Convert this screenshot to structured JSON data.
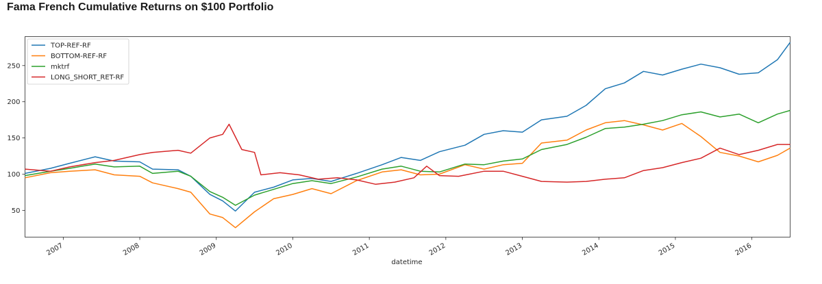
{
  "chart_data": {
    "type": "line",
    "title": "Fama French Cumulative Returns on $100 Portfolio",
    "xlabel": "datetime",
    "ylabel": "",
    "x_range": [
      "2006-07",
      "2016-07"
    ],
    "ylim": [
      13,
      290
    ],
    "grid": false,
    "legend_position": "top-left",
    "yticks": [
      50,
      100,
      150,
      200,
      250
    ],
    "xticks": [
      "2007",
      "2008",
      "2009",
      "2010",
      "2011",
      "2012",
      "2013",
      "2014",
      "2015",
      "2016"
    ],
    "series": [
      {
        "name": "TOP-REF-RF",
        "color": "#1f77b4",
        "points": [
          [
            "2006-07",
            101
          ],
          [
            "2006-11",
            108
          ],
          [
            "2007-02",
            115
          ],
          [
            "2007-06",
            124
          ],
          [
            "2007-09",
            118
          ],
          [
            "2008-01",
            117
          ],
          [
            "2008-03",
            107
          ],
          [
            "2008-07",
            106
          ],
          [
            "2008-09",
            97
          ],
          [
            "2008-12",
            72
          ],
          [
            "2009-02",
            63
          ],
          [
            "2009-04",
            49
          ],
          [
            "2009-07",
            75
          ],
          [
            "2009-10",
            82
          ],
          [
            "2010-01",
            92
          ],
          [
            "2010-04",
            94
          ],
          [
            "2010-07",
            90
          ],
          [
            "2010-11",
            101
          ],
          [
            "2011-03",
            113
          ],
          [
            "2011-06",
            123
          ],
          [
            "2011-09",
            119
          ],
          [
            "2011-12",
            131
          ],
          [
            "2012-04",
            140
          ],
          [
            "2012-07",
            155
          ],
          [
            "2012-10",
            160
          ],
          [
            "2013-01",
            158
          ],
          [
            "2013-04",
            175
          ],
          [
            "2013-08",
            180
          ],
          [
            "2013-11",
            195
          ],
          [
            "2014-02",
            218
          ],
          [
            "2014-05",
            226
          ],
          [
            "2014-08",
            242
          ],
          [
            "2014-11",
            237
          ],
          [
            "2015-02",
            245
          ],
          [
            "2015-05",
            252
          ],
          [
            "2015-08",
            247
          ],
          [
            "2015-11",
            238
          ],
          [
            "2016-02",
            240
          ],
          [
            "2016-05",
            258
          ],
          [
            "2016-07",
            282
          ]
        ]
      },
      {
        "name": "BOTTOM-REF-RF",
        "color": "#ff7f0e",
        "points": [
          [
            "2006-07",
            95
          ],
          [
            "2006-11",
            102
          ],
          [
            "2007-02",
            104
          ],
          [
            "2007-06",
            106
          ],
          [
            "2007-09",
            99
          ],
          [
            "2008-01",
            97
          ],
          [
            "2008-03",
            88
          ],
          [
            "2008-07",
            80
          ],
          [
            "2008-09",
            75
          ],
          [
            "2008-12",
            45
          ],
          [
            "2009-02",
            40
          ],
          [
            "2009-04",
            26
          ],
          [
            "2009-07",
            48
          ],
          [
            "2009-10",
            66
          ],
          [
            "2010-01",
            72
          ],
          [
            "2010-04",
            80
          ],
          [
            "2010-07",
            73
          ],
          [
            "2010-11",
            91
          ],
          [
            "2011-03",
            103
          ],
          [
            "2011-06",
            106
          ],
          [
            "2011-09",
            99
          ],
          [
            "2011-12",
            100
          ],
          [
            "2012-04",
            113
          ],
          [
            "2012-07",
            107
          ],
          [
            "2012-10",
            113
          ],
          [
            "2013-01",
            115
          ],
          [
            "2013-04",
            143
          ],
          [
            "2013-08",
            147
          ],
          [
            "2013-11",
            161
          ],
          [
            "2014-02",
            171
          ],
          [
            "2014-05",
            174
          ],
          [
            "2014-08",
            168
          ],
          [
            "2014-11",
            161
          ],
          [
            "2015-02",
            170
          ],
          [
            "2015-05",
            152
          ],
          [
            "2015-08",
            130
          ],
          [
            "2015-11",
            125
          ],
          [
            "2016-02",
            117
          ],
          [
            "2016-05",
            126
          ],
          [
            "2016-07",
            136
          ]
        ]
      },
      {
        "name": "mktrf",
        "color": "#2ca02c",
        "points": [
          [
            "2006-07",
            98
          ],
          [
            "2006-11",
            104
          ],
          [
            "2007-02",
            108
          ],
          [
            "2007-06",
            114
          ],
          [
            "2007-09",
            110
          ],
          [
            "2008-01",
            111
          ],
          [
            "2008-03",
            101
          ],
          [
            "2008-07",
            104
          ],
          [
            "2008-09",
            97
          ],
          [
            "2008-12",
            76
          ],
          [
            "2009-02",
            68
          ],
          [
            "2009-04",
            57
          ],
          [
            "2009-07",
            71
          ],
          [
            "2009-10",
            79
          ],
          [
            "2010-01",
            87
          ],
          [
            "2010-04",
            91
          ],
          [
            "2010-07",
            87
          ],
          [
            "2010-11",
            96
          ],
          [
            "2011-03",
            107
          ],
          [
            "2011-06",
            111
          ],
          [
            "2011-09",
            104
          ],
          [
            "2011-12",
            103
          ],
          [
            "2012-04",
            114
          ],
          [
            "2012-07",
            113
          ],
          [
            "2012-10",
            118
          ],
          [
            "2013-01",
            121
          ],
          [
            "2013-04",
            134
          ],
          [
            "2013-08",
            141
          ],
          [
            "2013-11",
            151
          ],
          [
            "2014-02",
            163
          ],
          [
            "2014-05",
            165
          ],
          [
            "2014-08",
            169
          ],
          [
            "2014-11",
            174
          ],
          [
            "2015-02",
            182
          ],
          [
            "2015-05",
            186
          ],
          [
            "2015-08",
            179
          ],
          [
            "2015-11",
            183
          ],
          [
            "2016-02",
            171
          ],
          [
            "2016-05",
            183
          ],
          [
            "2016-07",
            188
          ]
        ]
      },
      {
        "name": "LONG_SHORT_RET-RF",
        "color": "#d62728",
        "points": [
          [
            "2006-07",
            107
          ],
          [
            "2006-11",
            104
          ],
          [
            "2007-02",
            110
          ],
          [
            "2007-06",
            116
          ],
          [
            "2007-09",
            119
          ],
          [
            "2008-01",
            127
          ],
          [
            "2008-03",
            130
          ],
          [
            "2008-07",
            133
          ],
          [
            "2008-09",
            129
          ],
          [
            "2008-12",
            150
          ],
          [
            "2009-02",
            155
          ],
          [
            "2009-03",
            169
          ],
          [
            "2009-05",
            134
          ],
          [
            "2009-07",
            130
          ],
          [
            "2009-08",
            99
          ],
          [
            "2009-11",
            102
          ],
          [
            "2010-02",
            99
          ],
          [
            "2010-05",
            93
          ],
          [
            "2010-08",
            95
          ],
          [
            "2010-11",
            92
          ],
          [
            "2011-02",
            86
          ],
          [
            "2011-05",
            89
          ],
          [
            "2011-08",
            95
          ],
          [
            "2011-10",
            111
          ],
          [
            "2011-12",
            98
          ],
          [
            "2012-03",
            97
          ],
          [
            "2012-07",
            104
          ],
          [
            "2012-10",
            104
          ],
          [
            "2013-01",
            97
          ],
          [
            "2013-04",
            90
          ],
          [
            "2013-08",
            89
          ],
          [
            "2013-11",
            90
          ],
          [
            "2014-02",
            93
          ],
          [
            "2014-05",
            95
          ],
          [
            "2014-08",
            105
          ],
          [
            "2014-11",
            109
          ],
          [
            "2015-02",
            116
          ],
          [
            "2015-05",
            122
          ],
          [
            "2015-08",
            136
          ],
          [
            "2015-11",
            127
          ],
          [
            "2016-02",
            133
          ],
          [
            "2016-05",
            141
          ],
          [
            "2016-07",
            141
          ]
        ]
      }
    ]
  }
}
